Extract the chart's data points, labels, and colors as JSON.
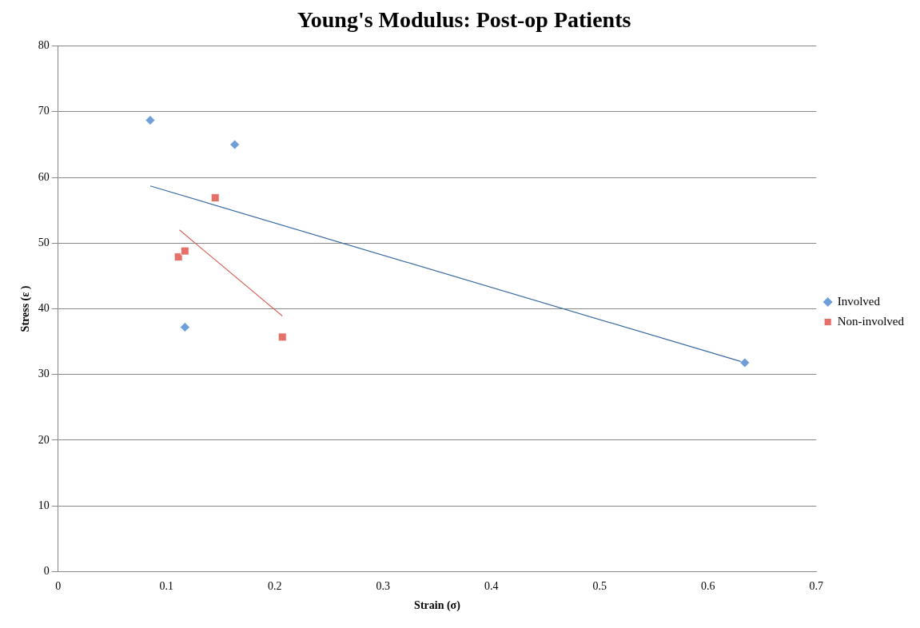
{
  "chart_data": {
    "type": "scatter",
    "title": "Young's Modulus: Post-op Patients",
    "xlabel": "Strain (σ)",
    "ylabel": "Stress (ε )",
    "xlim": [
      0,
      0.7
    ],
    "xticks": [
      0,
      0.1,
      0.2,
      0.3,
      0.4,
      0.5,
      0.6,
      0.7
    ],
    "ylim": [
      0,
      80
    ],
    "yticks": [
      0,
      10,
      20,
      30,
      40,
      50,
      60,
      70,
      80
    ],
    "grid": "y",
    "legend": "right",
    "series": [
      {
        "name": "Involved",
        "marker": "diamond",
        "color": "#6f9fd8",
        "x": [
          0.085,
          0.163,
          0.117,
          0.634
        ],
        "values": [
          68.7,
          65.0,
          37.2,
          31.8
        ]
      },
      {
        "name": "Non-involved",
        "marker": "square",
        "color": "#e5706a",
        "x": [
          0.145,
          0.111,
          0.117,
          0.207
        ],
        "values": [
          56.9,
          47.9,
          48.8,
          35.7
        ]
      },
      {
        "type": "line",
        "marker": "none",
        "color": "#3b6aa0",
        "x": [
          0.085,
          0.634
        ],
        "values": [
          58.7,
          31.8
        ]
      },
      {
        "type": "line",
        "marker": "none",
        "color": "#d9675f",
        "x": [
          0.112,
          0.207
        ],
        "values": [
          52.0,
          38.9
        ]
      }
    ]
  }
}
